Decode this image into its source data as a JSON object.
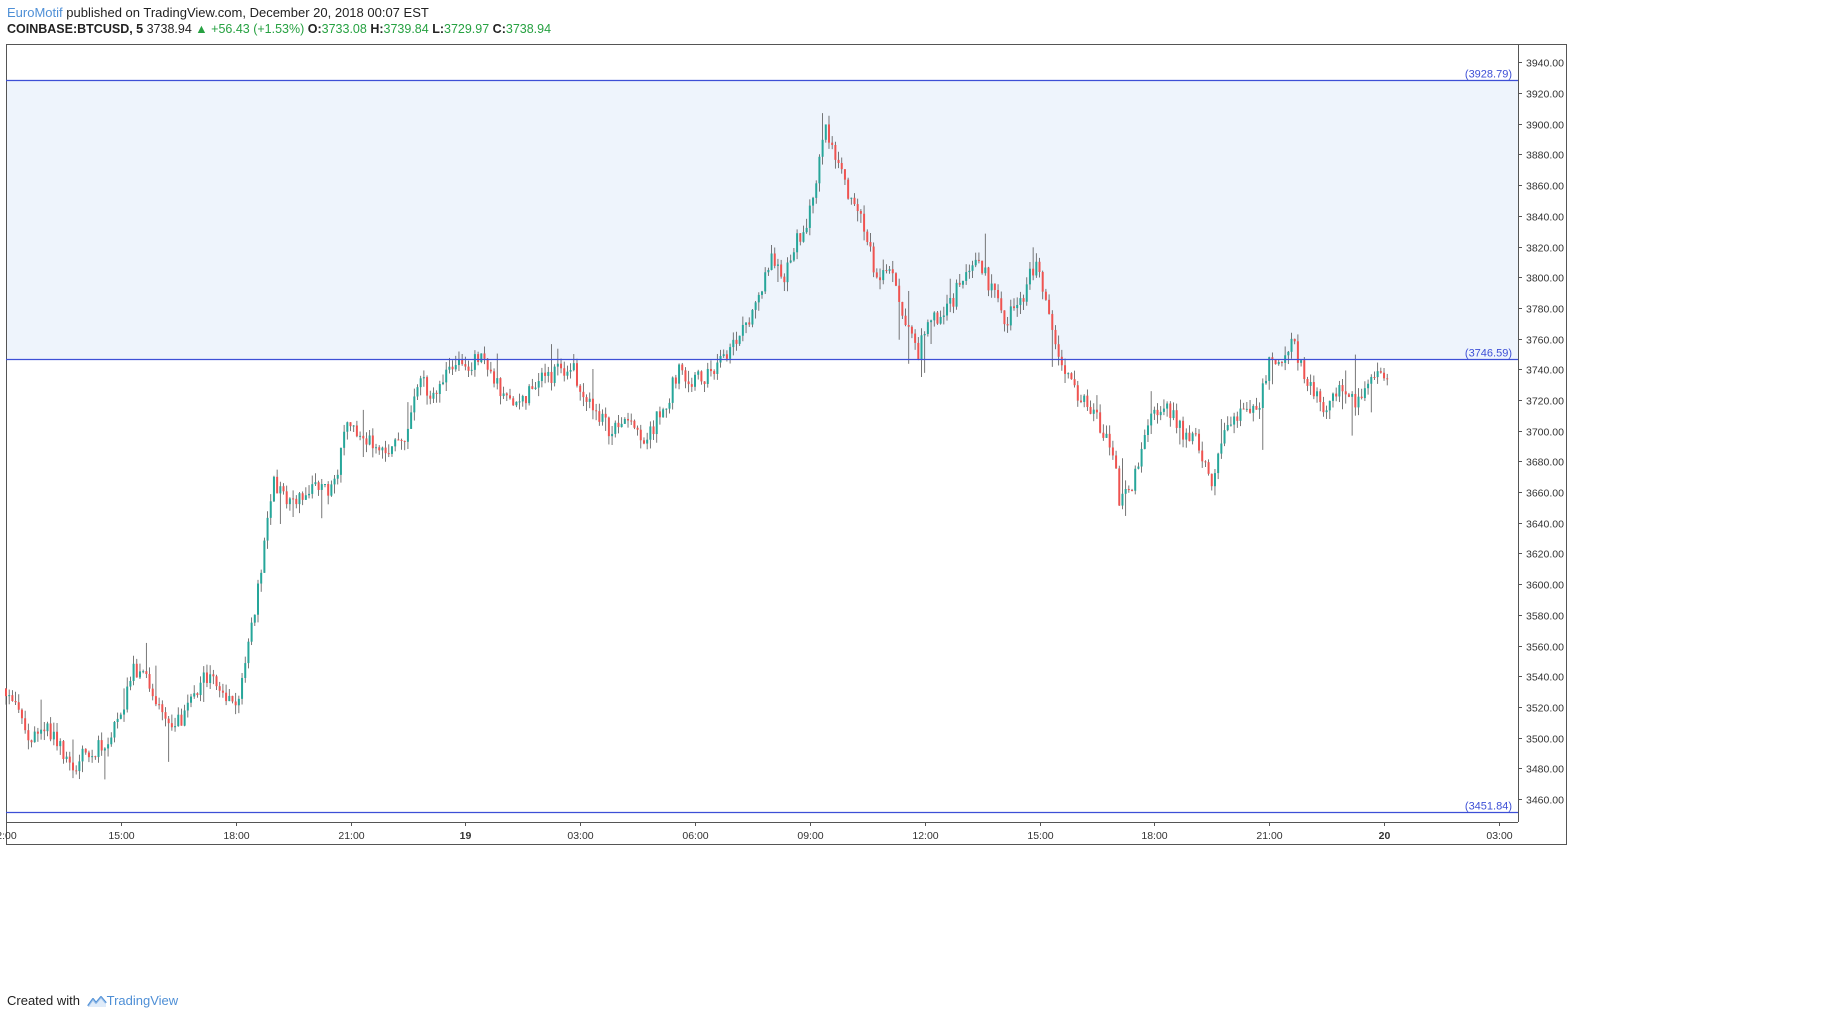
{
  "header": {
    "author": "EuroMotif",
    "published": "published on TradingView.com, December 20, 2018 00:07 EST"
  },
  "symbol_line": {
    "symbol": "COINBASE:BTCUSD, 5",
    "last": "3738.94",
    "change": "+56.43 (+1.53%)",
    "o_label": "O:",
    "o_value": "3733.08",
    "h_label": "H:",
    "h_value": "3739.84",
    "l_label": "L:",
    "l_value": "3729.97",
    "c_label": "C:",
    "c_value": "3738.94"
  },
  "footer": {
    "created_with": "Created with",
    "brand": "TradingView"
  },
  "colors": {
    "up": "#26a69a",
    "down": "#ef5350",
    "zone_fill": "#eef4fc",
    "level_line": "#3d4fd6",
    "grid": "#e4e4e4"
  },
  "chart_data": {
    "type": "candlestick",
    "ylim": [
      3445,
      3952
    ],
    "y_ticks": [
      3460,
      3480,
      3500,
      3520,
      3540,
      3560,
      3580,
      3600,
      3620,
      3640,
      3660,
      3680,
      3700,
      3720,
      3740,
      3760,
      3780,
      3800,
      3820,
      3840,
      3860,
      3880,
      3900,
      3920,
      3940
    ],
    "x_ticks": [
      "2:00",
      "15:00",
      "18:00",
      "21:00",
      "19",
      "03:00",
      "06:00",
      "09:00",
      "12:00",
      "15:00",
      "18:00",
      "21:00",
      "20",
      "03:00"
    ],
    "x_tick_hours": [
      12,
      15,
      18,
      21,
      24,
      27,
      30,
      33,
      36,
      39,
      42,
      45,
      48,
      51
    ],
    "xlim_hours": [
      12.0,
      51.5
    ],
    "levels": [
      {
        "value": 3928.79,
        "label": "(3928.79)"
      },
      {
        "value": 3746.59,
        "label": "(3746.59)"
      },
      {
        "value": 3451.84,
        "label": "(3451.84)"
      }
    ],
    "zone": [
      3746.59,
      3928.79
    ],
    "path_hours": [
      12.0,
      12.3,
      12.6,
      13.0,
      13.4,
      13.7,
      14.2,
      14.7,
      15.1,
      15.3,
      15.7,
      16.0,
      16.3,
      16.8,
      17.2,
      17.6,
      17.9,
      18.2,
      18.4,
      19.0,
      19.5,
      20.2,
      20.5,
      20.9,
      21.4,
      21.8,
      22.0,
      22.5,
      22.8,
      23.1,
      23.8,
      24.5,
      25.0,
      25.3,
      25.8,
      26.3,
      26.8,
      27.3,
      27.8,
      28.3,
      28.7,
      29.3,
      29.6,
      30.0,
      30.4,
      30.9,
      31.3,
      31.6,
      32.0,
      32.3,
      32.6,
      32.9,
      33.1,
      33.4,
      33.7,
      34.0,
      34.5,
      34.7,
      35.0,
      35.4,
      35.8,
      36.1,
      36.6,
      37.0,
      37.3,
      37.8,
      38.1,
      38.6,
      38.9,
      39.2,
      39.5,
      40.0,
      40.4,
      40.9,
      41.1,
      41.5,
      41.9,
      42.3,
      42.7,
      43.2,
      43.5,
      43.9,
      44.3,
      44.7,
      45.0,
      45.3,
      45.6,
      45.9,
      46.1,
      46.5,
      46.9,
      47.2,
      47.6,
      47.9,
      48.1
    ],
    "path_close": [
      3532,
      3522,
      3492,
      3510,
      3495,
      3482,
      3490,
      3500,
      3520,
      3545,
      3540,
      3520,
      3502,
      3522,
      3540,
      3535,
      3522,
      3535,
      3570,
      3665,
      3652,
      3668,
      3660,
      3700,
      3695,
      3688,
      3690,
      3700,
      3740,
      3720,
      3745,
      3745,
      3725,
      3715,
      3728,
      3738,
      3740,
      3715,
      3700,
      3712,
      3692,
      3722,
      3740,
      3733,
      3738,
      3750,
      3765,
      3785,
      3815,
      3800,
      3820,
      3836,
      3858,
      3895,
      3880,
      3855,
      3828,
      3795,
      3810,
      3780,
      3750,
      3772,
      3780,
      3798,
      3815,
      3790,
      3770,
      3790,
      3810,
      3780,
      3748,
      3725,
      3712,
      3690,
      3650,
      3670,
      3710,
      3720,
      3700,
      3690,
      3666,
      3705,
      3715,
      3710,
      3745,
      3742,
      3758,
      3740,
      3730,
      3712,
      3728,
      3718,
      3735,
      3740,
      3738.94
    ]
  }
}
